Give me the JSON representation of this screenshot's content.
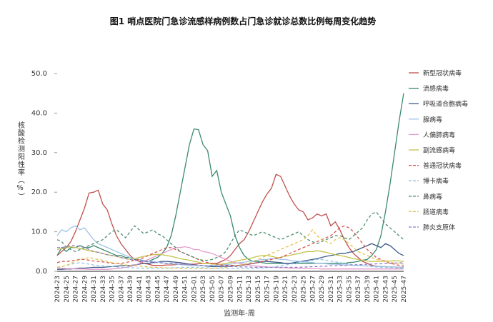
{
  "chart_data": {
    "type": "line",
    "title": "图1 哨点医院门急诊流感样病例数占门急诊就诊总数比例每周变化趋势",
    "x_label": "监测年-周",
    "y_label": "核酸检测阳性率（%）",
    "categories": [
      "2024-23",
      null,
      "2024-25",
      null,
      "2024-27",
      null,
      "2024-29",
      null,
      "2024-31",
      null,
      "2024-33",
      null,
      "2024-35",
      null,
      "2024-37",
      null,
      "2024-39",
      null,
      "2024-41",
      null,
      "2024-43",
      null,
      "2024-45",
      null,
      "2024-47",
      null,
      "2024-49",
      null,
      "2024-51",
      null,
      "2025-01",
      null,
      "2025-03",
      null,
      "2025-05",
      null,
      "2025-07",
      null,
      "2025-09",
      null,
      "2025-11",
      null,
      "2025-13",
      null,
      "2025-15",
      null,
      "2025-17",
      null,
      "2025-19",
      null,
      "2025-21",
      null,
      "2025-23",
      null,
      "2025-25",
      null,
      "2025-27",
      null,
      "2025-29",
      null,
      "2025-31",
      null,
      "2025-33",
      null,
      "2025-35",
      null,
      "2025-37",
      null,
      "2025-39",
      null,
      "2025-41",
      null,
      "2025-43",
      null,
      "2025-45",
      null,
      "2025-47"
    ],
    "ylim": [
      0,
      50
    ],
    "yticks": [
      {
        "value": 0,
        "label": "0.0"
      },
      {
        "value": 10,
        "label": "10.0"
      },
      {
        "value": 20,
        "label": "20.0"
      },
      {
        "value": 30,
        "label": "30.0"
      },
      {
        "value": 40,
        "label": "40.0"
      },
      {
        "value": 50,
        "label": "50.0"
      }
    ],
    "legend": "right",
    "series": [
      {
        "name": "新型冠状病毒",
        "color": "#c0504d",
        "dash": false,
        "values": [
          4,
          5,
          6,
          7.5,
          10,
          13,
          16,
          19.8,
          20,
          20.5,
          17,
          15.5,
          12,
          9,
          7,
          5.5,
          4,
          3,
          2.5,
          2,
          1.8,
          1.5,
          1.5,
          1.5,
          1.6,
          1.6,
          1.7,
          1.8,
          1.8,
          1.8,
          1.8,
          1.9,
          2,
          2,
          2,
          2,
          2.5,
          3,
          4,
          5.5,
          7,
          8,
          10,
          12.5,
          15,
          17.5,
          19.5,
          21,
          24.5,
          24,
          21.5,
          19,
          17,
          15.5,
          15,
          13,
          13.5,
          14.5,
          14,
          14.5,
          11.5,
          12.5,
          10.5,
          8,
          6,
          4.5,
          3.5,
          2.5,
          2,
          1.5,
          1.3,
          1.2,
          1.2,
          1.1,
          1.1,
          1,
          1
        ]
      },
      {
        "name": "流感病毒",
        "color": "#3a8a6f",
        "dash": false,
        "values": [
          4,
          6,
          5,
          6,
          6,
          6.5,
          6,
          6,
          6.5,
          6,
          5.5,
          5,
          4.5,
          4,
          4,
          3.5,
          3.5,
          3,
          3,
          2.5,
          2.5,
          3,
          3.5,
          4.5,
          6,
          9,
          14,
          20,
          26,
          32,
          36,
          35.8,
          32,
          30.5,
          24,
          25.5,
          20,
          17,
          14,
          9,
          6,
          4,
          3,
          2.5,
          2.5,
          2.2,
          2,
          2,
          2,
          2,
          2,
          2,
          2,
          2,
          2,
          2,
          2,
          2,
          2,
          2,
          2,
          2,
          2,
          2,
          2.2,
          2.3,
          2.5,
          2.8,
          3,
          4,
          5.5,
          9,
          15,
          22,
          30,
          38,
          45
        ]
      },
      {
        "name": "呼吸道合胞病毒",
        "color": "#3d5a8a",
        "dash": false,
        "values": [
          0.5,
          0.5,
          0.6,
          0.6,
          0.7,
          0.8,
          0.8,
          0.9,
          1,
          1,
          1,
          1.1,
          1.2,
          1.3,
          1.4,
          1.5,
          1.5,
          1.6,
          1.8,
          2,
          2,
          2.2,
          2.3,
          2.5,
          2.5,
          2.4,
          2.3,
          2.2,
          2,
          1.8,
          1.6,
          1.5,
          1.4,
          1.3,
          1.2,
          1.2,
          1.2,
          1.3,
          1.3,
          1.4,
          1.5,
          1.6,
          1.8,
          2,
          2.2,
          2.5,
          2.5,
          2.4,
          2.3,
          2.2,
          2,
          2,
          2.2,
          2.4,
          2.6,
          2.8,
          3,
          3.2,
          3.5,
          3.8,
          4,
          4.2,
          4.5,
          4.5,
          4.8,
          5,
          5.5,
          6,
          6.5,
          7,
          6.5,
          6,
          7,
          6.5,
          5.5,
          4.5,
          4
        ]
      },
      {
        "name": "腺病毒",
        "color": "#9dc3e6",
        "dash": false,
        "values": [
          9,
          10.5,
          10,
          11,
          11.5,
          10.5,
          11,
          9.5,
          8,
          7,
          6.5,
          6,
          5.5,
          5,
          4.5,
          4,
          3.5,
          3.2,
          3,
          2.8,
          2.6,
          2.5,
          2.3,
          2.2,
          2,
          1.9,
          1.8,
          1.7,
          1.6,
          1.5,
          1.5,
          1.5,
          1.4,
          1.4,
          1.5,
          1.5,
          1.6,
          1.7,
          1.8,
          2,
          2.2,
          2.3,
          2.5,
          2.6,
          2.8,
          3,
          3,
          3.2,
          3.2,
          3,
          3,
          2.8,
          2.6,
          2.5,
          2.4,
          2.3,
          2.2,
          2,
          2,
          1.9,
          1.8,
          1.8,
          1.7,
          1.6,
          1.6,
          1.5,
          1.5,
          1.4,
          1.4,
          1.3,
          1.3,
          1.2,
          1.2,
          1.1,
          1.1,
          1,
          1
        ]
      },
      {
        "name": "人偏肺病毒",
        "color": "#e59acb",
        "dash": false,
        "values": [
          0.8,
          0.8,
          0.7,
          0.7,
          0.6,
          0.6,
          0.6,
          0.5,
          0.5,
          0.5,
          0.5,
          0.5,
          0.6,
          0.7,
          0.8,
          1,
          1.2,
          1.5,
          2,
          2.5,
          3,
          3.5,
          4,
          4.5,
          5,
          5.5,
          6,
          6,
          6.2,
          6,
          5.5,
          5.5,
          5,
          4.8,
          4.5,
          4,
          3.5,
          3,
          2.5,
          2.2,
          2,
          1.8,
          1.6,
          1.4,
          1.3,
          1.2,
          1.1,
          1,
          1,
          0.9,
          0.9,
          0.8,
          0.8,
          0.8,
          0.7,
          0.7,
          0.7,
          0.7,
          0.6,
          0.6,
          0.6,
          0.6,
          0.6,
          0.6,
          0.6,
          0.6,
          0.6,
          0.6,
          0.6,
          0.6,
          0.6,
          0.6,
          0.6,
          0.6,
          0.6,
          0.6,
          0.6
        ]
      },
      {
        "name": "副流感病毒",
        "color": "#c5c24a",
        "dash": false,
        "values": [
          5.5,
          5.8,
          6,
          6.2,
          6,
          5.8,
          5.5,
          5.2,
          5,
          4.8,
          4.5,
          4.2,
          4,
          3.8,
          3.5,
          3.2,
          3,
          3.2,
          3.5,
          3.8,
          4,
          4.2,
          4.3,
          4.2,
          4,
          3.8,
          3.5,
          3.2,
          3,
          2.8,
          2.5,
          2.3,
          2,
          2,
          1.8,
          1.8,
          1.8,
          2,
          2.2,
          2.5,
          2.8,
          3,
          3.2,
          3.5,
          3.8,
          4,
          4,
          3.8,
          3.5,
          3.5,
          3.8,
          4,
          4.3,
          4.5,
          4.8,
          5,
          5,
          5.2,
          5,
          4.8,
          4.5,
          4.2,
          4,
          3.8,
          3.5,
          3.2,
          3,
          2.8,
          2.6,
          2.5,
          2.5,
          2.5,
          2.6,
          2.6,
          2.7,
          2.6,
          2.5
        ]
      },
      {
        "name": "普通冠状病毒",
        "color": "#d9534f",
        "dash": true,
        "values": [
          2.2,
          2.5,
          2.5,
          2.6,
          2.8,
          3,
          3,
          2.8,
          2.6,
          2.5,
          2.4,
          2.2,
          2,
          2,
          2,
          2.2,
          2.5,
          2.8,
          3,
          3.5,
          4,
          4.5,
          5,
          5.5,
          6,
          6,
          5.5,
          5,
          4.5,
          4,
          3.5,
          3,
          2.5,
          2.2,
          2,
          1.8,
          1.6,
          1.5,
          1.5,
          1.5,
          1.5,
          1.6,
          1.8,
          2,
          2.2,
          2.5,
          2.8,
          3,
          3.2,
          3.5,
          4,
          4.5,
          5,
          5.5,
          6,
          6.5,
          7,
          7.5,
          8,
          8.5,
          9,
          10,
          11,
          11.5,
          11,
          10,
          8.5,
          7,
          5.5,
          4.5,
          3.5,
          3,
          2.5,
          2,
          1.8,
          1.5,
          1.3
        ]
      },
      {
        "name": "博卡病毒",
        "color": "#8fc4e8",
        "dash": true,
        "values": [
          1,
          1.2,
          1.5,
          1.8,
          2,
          2.2,
          2,
          1.8,
          1.6,
          1.5,
          1.4,
          1.3,
          1.2,
          1.1,
          1,
          1,
          0.9,
          0.9,
          0.8,
          0.8,
          0.8,
          0.8,
          0.8,
          0.8,
          0.8,
          0.9,
          0.9,
          1,
          1,
          1,
          1,
          1,
          0.9,
          0.9,
          0.8,
          0.8,
          0.8,
          0.8,
          0.7,
          0.7,
          0.7,
          0.7,
          0.7,
          0.7,
          0.8,
          0.8,
          0.9,
          1,
          1.2,
          1.4,
          1.6,
          1.8,
          2,
          2.2,
          2.4,
          2.6,
          2.8,
          3,
          3,
          2.8,
          2.6,
          2.4,
          2.2,
          2,
          1.8,
          1.6,
          1.5,
          1.4,
          1.3,
          1.2,
          1.1,
          1,
          1,
          0.9,
          0.9,
          0.8,
          0.8
        ]
      },
      {
        "name": "鼻病毒",
        "color": "#4f8f6f",
        "dash": true,
        "values": [
          8,
          7.5,
          6,
          5.5,
          5,
          5.5,
          6,
          6.5,
          7,
          7.5,
          8,
          9,
          10,
          10.5,
          9.5,
          8.5,
          10,
          11.5,
          10.5,
          9.5,
          10,
          10.5,
          9.5,
          9,
          8,
          7,
          6,
          5,
          4.5,
          4,
          3.5,
          3,
          2.8,
          2.8,
          3,
          3.5,
          4,
          5,
          7,
          9,
          10.5,
          10,
          9.5,
          9,
          9.5,
          10,
          9.5,
          9,
          8.5,
          8,
          8.5,
          9,
          9.5,
          10,
          9,
          8,
          7.5,
          7,
          7.5,
          8,
          8.5,
          9,
          9,
          8.5,
          8,
          9,
          10,
          11,
          13,
          14.5,
          15,
          13.5,
          12,
          11,
          10,
          9,
          8
        ]
      },
      {
        "name": "肠道病毒",
        "color": "#e0c450",
        "dash": true,
        "values": [
          1,
          1.2,
          1.5,
          2,
          2.5,
          3,
          3.2,
          3.5,
          3.2,
          3,
          2.8,
          2.5,
          2.2,
          2,
          1.8,
          1.6,
          1.5,
          1.4,
          1.3,
          1.2,
          1.1,
          1,
          1,
          0.9,
          0.9,
          0.8,
          0.8,
          0.8,
          0.7,
          0.7,
          0.7,
          0.7,
          0.7,
          0.7,
          0.8,
          0.8,
          0.9,
          1,
          1.2,
          1.4,
          1.6,
          1.8,
          2,
          2.5,
          3,
          3.5,
          4,
          4.5,
          5,
          5.5,
          6,
          6.5,
          7,
          7.5,
          8,
          9,
          10.5,
          9,
          8,
          7.5,
          7,
          8,
          8.5,
          8,
          7,
          6,
          5,
          4.5,
          4,
          3.5,
          3,
          2.8,
          2.5,
          2.3,
          2.1,
          2,
          1.8
        ]
      },
      {
        "name": "肺炎支原体",
        "color": "#8e7cc3",
        "dash": true,
        "values": [
          6,
          6,
          6.2,
          6.5,
          6.5,
          6.3,
          6,
          5.5,
          5,
          4.8,
          4.5,
          4.2,
          4,
          3.8,
          3.5,
          3.2,
          3,
          2.8,
          2.6,
          2.5,
          2.4,
          2.3,
          2.2,
          2.1,
          2,
          2,
          1.9,
          1.8,
          1.8,
          1.7,
          1.6,
          1.5,
          1.5,
          1.4,
          1.4,
          1.3,
          1.3,
          1.2,
          1.2,
          1.2,
          1.1,
          1.1,
          1.1,
          1,
          1,
          1,
          1,
          1,
          1,
          1,
          1,
          1,
          1,
          1,
          1.1,
          1.1,
          1.2,
          1.2,
          1.3,
          1.3,
          1.4,
          1.4,
          1.5,
          1.5,
          1.6,
          1.6,
          1.7,
          1.7,
          1.8,
          1.8,
          1.9,
          1.9,
          2,
          2,
          2.1,
          2.1,
          2.2
        ]
      }
    ]
  }
}
